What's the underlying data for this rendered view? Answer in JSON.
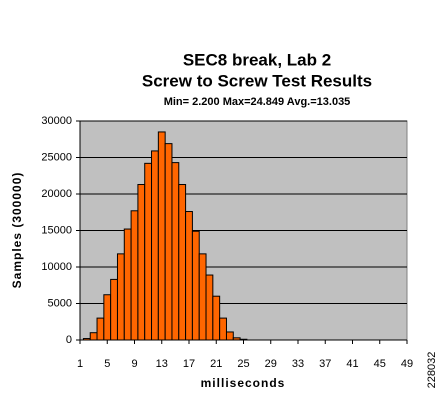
{
  "chart_data": {
    "type": "bar",
    "title": [
      "SEC8 break, Lab 2",
      "Screw to Screw Test Results"
    ],
    "subtitle": "Min= 2.200  Max=24.849  Avg.=13.035",
    "x_label": "milliseconds",
    "y_label": "Samples (300000)",
    "x": [
      2,
      3,
      4,
      5,
      6,
      7,
      8,
      9,
      10,
      11,
      12,
      13,
      14,
      15,
      16,
      17,
      18,
      19,
      20,
      21,
      22,
      23,
      24,
      25
    ],
    "values": [
      200,
      1000,
      3000,
      6200,
      8300,
      11800,
      15200,
      17700,
      21300,
      24200,
      25900,
      28500,
      26900,
      24300,
      21300,
      17600,
      14900,
      11800,
      8900,
      6000,
      3000,
      1100,
      300,
      100
    ],
    "color": "#ff6600",
    "xlim": [
      1,
      49
    ],
    "xticks": [
      1,
      5,
      9,
      13,
      17,
      21,
      25,
      29,
      33,
      37,
      41,
      45,
      49
    ],
    "ylim": [
      0,
      30000
    ],
    "yticks": [
      0,
      5000,
      10000,
      15000,
      20000,
      25000,
      30000
    ],
    "grid": true
  },
  "side_label": "228032"
}
